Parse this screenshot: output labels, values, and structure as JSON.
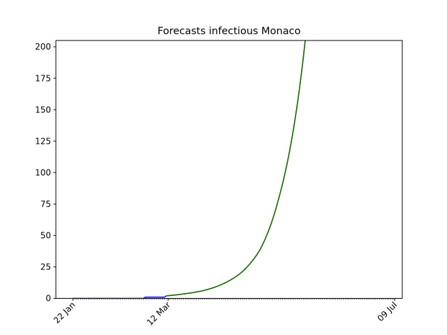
{
  "chart_data": {
    "type": "line",
    "title": "Forecasts infectious Monaco",
    "xlabel": "",
    "ylabel": "",
    "x_start": "22 Jan",
    "x_end": "09 Jul",
    "x_range_dates": [
      "2020-01-13",
      "2020-07-13"
    ],
    "ylim": [
      0,
      205
    ],
    "yticks": [
      0,
      25,
      50,
      75,
      100,
      125,
      150,
      175,
      200
    ],
    "xtick_labels": [
      {
        "date": "2020-01-22",
        "label": "22 Jan"
      },
      {
        "date": "2020-03-12",
        "label": "12 Mar"
      },
      {
        "date": "2020-07-09",
        "label": "09 Jul"
      }
    ],
    "minor_ticks": "daily",
    "grid": false,
    "legend": "none",
    "series": [
      {
        "color": "#0000ff",
        "points": [
          [
            "2020-01-22",
            0
          ],
          [
            "2020-02-28",
            0
          ],
          [
            "2020-02-29",
            1
          ],
          [
            "2020-03-10",
            1
          ],
          [
            "2020-03-11",
            2
          ]
        ]
      },
      {
        "color": "#ff0000",
        "growth": "exponential",
        "points": [
          [
            "2020-03-11",
            2
          ],
          [
            "2020-03-20",
            3.5
          ],
          [
            "2020-03-30",
            6
          ],
          [
            "2020-04-09",
            11
          ],
          [
            "2020-04-19",
            20
          ],
          [
            "2020-04-29",
            38
          ],
          [
            "2020-05-09",
            79
          ],
          [
            "2020-05-19",
            156
          ],
          [
            "2020-05-23",
            205
          ]
        ]
      },
      {
        "color": "#008000",
        "growth": "exponential",
        "points": [
          [
            "2020-03-11",
            2
          ],
          [
            "2020-03-20",
            3.5
          ],
          [
            "2020-03-30",
            6
          ],
          [
            "2020-04-09",
            11
          ],
          [
            "2020-04-19",
            20
          ],
          [
            "2020-04-29",
            38
          ],
          [
            "2020-05-09",
            79
          ],
          [
            "2020-05-19",
            156
          ],
          [
            "2020-05-23",
            205
          ]
        ]
      }
    ]
  }
}
